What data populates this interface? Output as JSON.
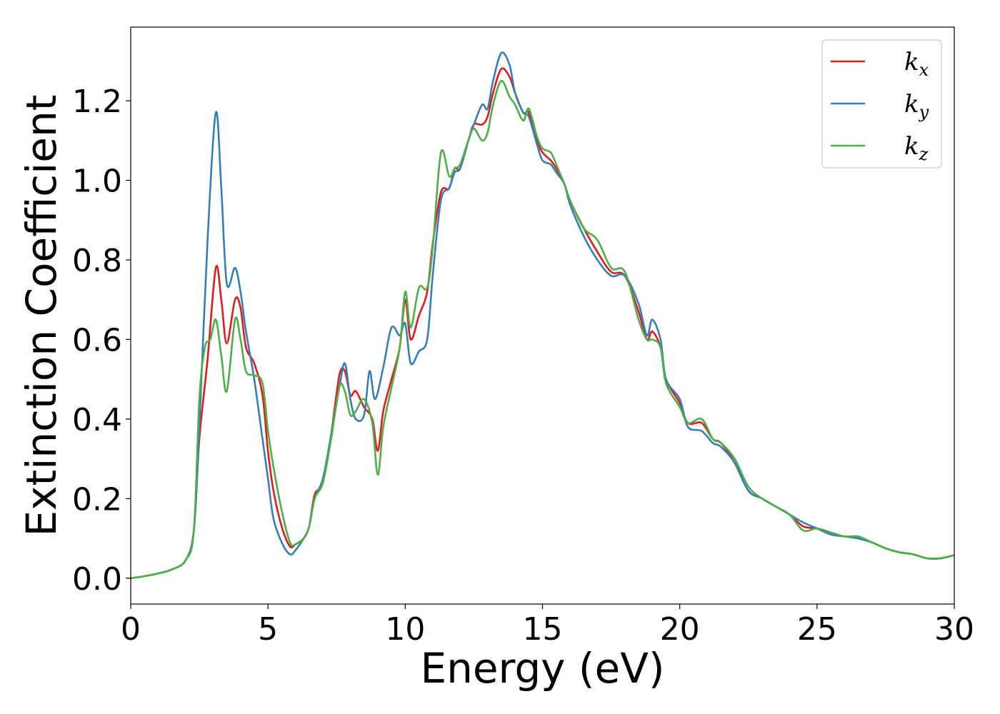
{
  "chart_data": {
    "type": "line",
    "xlabel": "Energy (eV)",
    "ylabel": "Extinction Coefficient",
    "xlim": [
      0,
      30
    ],
    "ylim": [
      -0.065,
      1.385
    ],
    "xticks": [
      0,
      5,
      10,
      15,
      20,
      25,
      30
    ],
    "yticks": [
      0.0,
      0.2,
      0.4,
      0.6,
      0.8,
      1.0,
      1.2
    ],
    "grid": false,
    "legend_position": "top-right",
    "series": [
      {
        "name": "k_x",
        "label_main": "k",
        "label_sub": "x",
        "color": "#e41a1c",
        "points": [
          [
            0,
            0.0
          ],
          [
            0.5,
            0.005
          ],
          [
            1.0,
            0.012
          ],
          [
            1.5,
            0.022
          ],
          [
            2.0,
            0.045
          ],
          [
            2.3,
            0.12
          ],
          [
            2.5,
            0.35
          ],
          [
            2.8,
            0.55
          ],
          [
            3.1,
            0.78
          ],
          [
            3.3,
            0.7
          ],
          [
            3.5,
            0.59
          ],
          [
            3.8,
            0.7
          ],
          [
            4.0,
            0.68
          ],
          [
            4.2,
            0.58
          ],
          [
            4.5,
            0.54
          ],
          [
            4.8,
            0.46
          ],
          [
            5.0,
            0.32
          ],
          [
            5.2,
            0.22
          ],
          [
            5.5,
            0.13
          ],
          [
            5.8,
            0.08
          ],
          [
            6.0,
            0.085
          ],
          [
            6.3,
            0.1
          ],
          [
            6.5,
            0.13
          ],
          [
            6.7,
            0.21
          ],
          [
            7.0,
            0.24
          ],
          [
            7.3,
            0.36
          ],
          [
            7.6,
            0.51
          ],
          [
            7.8,
            0.52
          ],
          [
            8.0,
            0.46
          ],
          [
            8.2,
            0.47
          ],
          [
            8.5,
            0.43
          ],
          [
            8.8,
            0.4
          ],
          [
            9.0,
            0.32
          ],
          [
            9.2,
            0.42
          ],
          [
            9.5,
            0.5
          ],
          [
            9.8,
            0.58
          ],
          [
            10.0,
            0.7
          ],
          [
            10.2,
            0.6
          ],
          [
            10.5,
            0.66
          ],
          [
            10.8,
            0.72
          ],
          [
            11.0,
            0.84
          ],
          [
            11.3,
            0.97
          ],
          [
            11.6,
            0.98
          ],
          [
            11.8,
            1.03
          ],
          [
            12.0,
            1.03
          ],
          [
            12.3,
            1.1
          ],
          [
            12.5,
            1.14
          ],
          [
            12.8,
            1.14
          ],
          [
            13.0,
            1.16
          ],
          [
            13.2,
            1.22
          ],
          [
            13.5,
            1.28
          ],
          [
            13.8,
            1.26
          ],
          [
            14.0,
            1.22
          ],
          [
            14.3,
            1.17
          ],
          [
            14.5,
            1.17
          ],
          [
            14.8,
            1.1
          ],
          [
            15.0,
            1.07
          ],
          [
            15.3,
            1.05
          ],
          [
            15.5,
            1.03
          ],
          [
            15.8,
            0.99
          ],
          [
            16.0,
            0.95
          ],
          [
            16.5,
            0.88
          ],
          [
            17.0,
            0.82
          ],
          [
            17.5,
            0.77
          ],
          [
            18.0,
            0.76
          ],
          [
            18.5,
            0.67
          ],
          [
            18.8,
            0.6
          ],
          [
            19.0,
            0.62
          ],
          [
            19.3,
            0.58
          ],
          [
            19.5,
            0.5
          ],
          [
            20.0,
            0.44
          ],
          [
            20.3,
            0.39
          ],
          [
            20.8,
            0.39
          ],
          [
            21.2,
            0.35
          ],
          [
            21.5,
            0.34
          ],
          [
            22.0,
            0.29
          ],
          [
            22.5,
            0.22
          ],
          [
            23.0,
            0.2
          ],
          [
            23.5,
            0.18
          ],
          [
            24.0,
            0.16
          ],
          [
            24.5,
            0.13
          ],
          [
            25.0,
            0.125
          ],
          [
            25.5,
            0.11
          ],
          [
            26.0,
            0.105
          ],
          [
            26.5,
            0.1
          ],
          [
            27.0,
            0.09
          ],
          [
            27.5,
            0.075
          ],
          [
            28.0,
            0.065
          ],
          [
            28.5,
            0.06
          ],
          [
            29.0,
            0.05
          ],
          [
            29.5,
            0.05
          ],
          [
            30.0,
            0.058
          ]
        ]
      },
      {
        "name": "k_y",
        "label_main": "k",
        "label_sub": "y",
        "color": "#377eb8",
        "points": [
          [
            0,
            0.0
          ],
          [
            0.5,
            0.005
          ],
          [
            1.0,
            0.012
          ],
          [
            1.5,
            0.022
          ],
          [
            2.0,
            0.045
          ],
          [
            2.3,
            0.12
          ],
          [
            2.5,
            0.38
          ],
          [
            2.8,
            0.85
          ],
          [
            3.1,
            1.17
          ],
          [
            3.3,
            0.98
          ],
          [
            3.5,
            0.74
          ],
          [
            3.8,
            0.78
          ],
          [
            4.0,
            0.72
          ],
          [
            4.2,
            0.62
          ],
          [
            4.5,
            0.5
          ],
          [
            4.8,
            0.35
          ],
          [
            5.0,
            0.25
          ],
          [
            5.2,
            0.15
          ],
          [
            5.5,
            0.09
          ],
          [
            5.8,
            0.06
          ],
          [
            6.0,
            0.07
          ],
          [
            6.3,
            0.1
          ],
          [
            6.5,
            0.13
          ],
          [
            6.7,
            0.2
          ],
          [
            7.0,
            0.25
          ],
          [
            7.3,
            0.36
          ],
          [
            7.6,
            0.48
          ],
          [
            7.8,
            0.54
          ],
          [
            8.0,
            0.45
          ],
          [
            8.2,
            0.4
          ],
          [
            8.5,
            0.41
          ],
          [
            8.7,
            0.52
          ],
          [
            8.9,
            0.45
          ],
          [
            9.2,
            0.53
          ],
          [
            9.5,
            0.63
          ],
          [
            9.8,
            0.61
          ],
          [
            10.0,
            0.64
          ],
          [
            10.2,
            0.54
          ],
          [
            10.5,
            0.57
          ],
          [
            10.8,
            0.6
          ],
          [
            11.0,
            0.76
          ],
          [
            11.3,
            0.95
          ],
          [
            11.6,
            0.98
          ],
          [
            11.8,
            1.02
          ],
          [
            12.0,
            1.03
          ],
          [
            12.3,
            1.1
          ],
          [
            12.5,
            1.14
          ],
          [
            12.8,
            1.19
          ],
          [
            13.0,
            1.18
          ],
          [
            13.2,
            1.25
          ],
          [
            13.5,
            1.32
          ],
          [
            13.8,
            1.29
          ],
          [
            14.0,
            1.22
          ],
          [
            14.3,
            1.17
          ],
          [
            14.5,
            1.16
          ],
          [
            14.8,
            1.09
          ],
          [
            15.0,
            1.05
          ],
          [
            15.3,
            1.04
          ],
          [
            15.5,
            1.02
          ],
          [
            15.8,
            0.99
          ],
          [
            16.0,
            0.94
          ],
          [
            16.5,
            0.86
          ],
          [
            17.0,
            0.8
          ],
          [
            17.5,
            0.76
          ],
          [
            18.0,
            0.76
          ],
          [
            18.5,
            0.69
          ],
          [
            18.8,
            0.61
          ],
          [
            19.0,
            0.65
          ],
          [
            19.3,
            0.6
          ],
          [
            19.5,
            0.5
          ],
          [
            20.0,
            0.45
          ],
          [
            20.3,
            0.38
          ],
          [
            20.8,
            0.37
          ],
          [
            21.2,
            0.34
          ],
          [
            21.5,
            0.33
          ],
          [
            22.0,
            0.29
          ],
          [
            22.5,
            0.22
          ],
          [
            23.0,
            0.2
          ],
          [
            23.5,
            0.18
          ],
          [
            24.0,
            0.16
          ],
          [
            24.5,
            0.14
          ],
          [
            25.0,
            0.125
          ],
          [
            25.5,
            0.11
          ],
          [
            26.0,
            0.105
          ],
          [
            26.5,
            0.1
          ],
          [
            27.0,
            0.09
          ],
          [
            27.5,
            0.075
          ],
          [
            28.0,
            0.065
          ],
          [
            28.5,
            0.06
          ],
          [
            29.0,
            0.05
          ],
          [
            29.5,
            0.05
          ],
          [
            30.0,
            0.058
          ]
        ]
      },
      {
        "name": "k_z",
        "label_main": "k",
        "label_sub": "z",
        "color": "#4daf4a",
        "points": [
          [
            0,
            0.0
          ],
          [
            0.5,
            0.005
          ],
          [
            1.0,
            0.012
          ],
          [
            1.5,
            0.022
          ],
          [
            2.0,
            0.045
          ],
          [
            2.3,
            0.12
          ],
          [
            2.5,
            0.45
          ],
          [
            2.7,
            0.58
          ],
          [
            2.9,
            0.6
          ],
          [
            3.1,
            0.65
          ],
          [
            3.3,
            0.56
          ],
          [
            3.5,
            0.47
          ],
          [
            3.8,
            0.65
          ],
          [
            4.0,
            0.6
          ],
          [
            4.2,
            0.52
          ],
          [
            4.5,
            0.51
          ],
          [
            4.8,
            0.49
          ],
          [
            5.0,
            0.37
          ],
          [
            5.2,
            0.28
          ],
          [
            5.5,
            0.17
          ],
          [
            5.8,
            0.09
          ],
          [
            6.0,
            0.085
          ],
          [
            6.3,
            0.1
          ],
          [
            6.5,
            0.13
          ],
          [
            6.7,
            0.2
          ],
          [
            7.0,
            0.24
          ],
          [
            7.3,
            0.35
          ],
          [
            7.6,
            0.48
          ],
          [
            7.8,
            0.47
          ],
          [
            8.0,
            0.41
          ],
          [
            8.2,
            0.42
          ],
          [
            8.5,
            0.45
          ],
          [
            8.8,
            0.39
          ],
          [
            9.0,
            0.26
          ],
          [
            9.2,
            0.38
          ],
          [
            9.5,
            0.48
          ],
          [
            9.8,
            0.58
          ],
          [
            10.0,
            0.72
          ],
          [
            10.2,
            0.63
          ],
          [
            10.5,
            0.73
          ],
          [
            10.8,
            0.73
          ],
          [
            11.0,
            0.83
          ],
          [
            11.3,
            1.07
          ],
          [
            11.6,
            1.01
          ],
          [
            11.8,
            1.03
          ],
          [
            12.0,
            1.04
          ],
          [
            12.3,
            1.1
          ],
          [
            12.5,
            1.13
          ],
          [
            12.8,
            1.1
          ],
          [
            13.0,
            1.12
          ],
          [
            13.2,
            1.19
          ],
          [
            13.5,
            1.25
          ],
          [
            13.8,
            1.21
          ],
          [
            14.0,
            1.19
          ],
          [
            14.3,
            1.15
          ],
          [
            14.5,
            1.18
          ],
          [
            14.8,
            1.11
          ],
          [
            15.0,
            1.08
          ],
          [
            15.3,
            1.07
          ],
          [
            15.5,
            1.04
          ],
          [
            15.8,
            0.99
          ],
          [
            16.0,
            0.95
          ],
          [
            16.5,
            0.88
          ],
          [
            17.0,
            0.85
          ],
          [
            17.5,
            0.78
          ],
          [
            18.0,
            0.77
          ],
          [
            18.5,
            0.65
          ],
          [
            18.8,
            0.6
          ],
          [
            19.0,
            0.6
          ],
          [
            19.3,
            0.58
          ],
          [
            19.5,
            0.49
          ],
          [
            20.0,
            0.43
          ],
          [
            20.3,
            0.39
          ],
          [
            20.8,
            0.4
          ],
          [
            21.2,
            0.35
          ],
          [
            21.5,
            0.34
          ],
          [
            22.0,
            0.3
          ],
          [
            22.5,
            0.23
          ],
          [
            23.0,
            0.2
          ],
          [
            23.5,
            0.18
          ],
          [
            24.0,
            0.16
          ],
          [
            24.5,
            0.12
          ],
          [
            25.0,
            0.125
          ],
          [
            25.5,
            0.115
          ],
          [
            26.0,
            0.105
          ],
          [
            26.5,
            0.105
          ],
          [
            27.0,
            0.09
          ],
          [
            27.5,
            0.075
          ],
          [
            28.0,
            0.065
          ],
          [
            28.5,
            0.06
          ],
          [
            29.0,
            0.05
          ],
          [
            29.5,
            0.05
          ],
          [
            30.0,
            0.058
          ]
        ]
      }
    ]
  }
}
